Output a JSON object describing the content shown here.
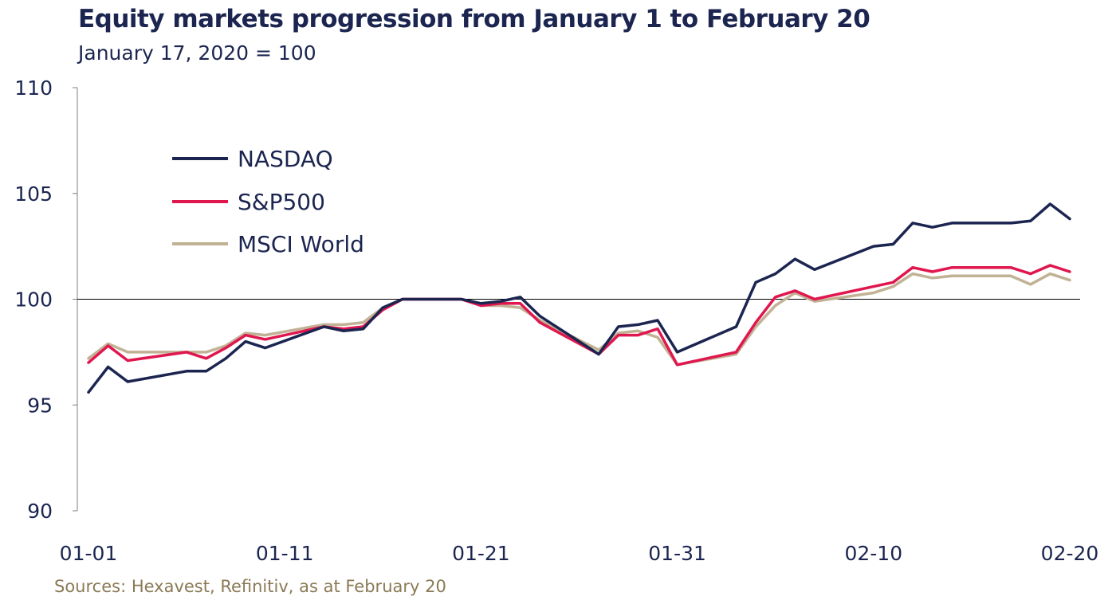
{
  "chart_data": {
    "type": "line",
    "title": "Equity markets progression from January 1 to February 20",
    "subtitle": "January 17, 2020 = 100",
    "source": "Sources: Hexavest, Refinitiv, as at February 20",
    "xlabel": "",
    "ylabel": "",
    "ylim": [
      90,
      110
    ],
    "yticks": [
      90,
      95,
      100,
      105,
      110
    ],
    "xlim": [
      0,
      50
    ],
    "xticks": [
      {
        "x": 0,
        "label": "01-01"
      },
      {
        "x": 10,
        "label": "01-11"
      },
      {
        "x": 20,
        "label": "01-21"
      },
      {
        "x": 30,
        "label": "01-31"
      },
      {
        "x": 40,
        "label": "02-10"
      },
      {
        "x": 50,
        "label": "02-20"
      }
    ],
    "baseline": 100,
    "legend_position": "top-left",
    "grid": false,
    "x": [
      0,
      1,
      2,
      5,
      6,
      7,
      8,
      9,
      12,
      13,
      14,
      15,
      16,
      19,
      20,
      21,
      22,
      23,
      26,
      27,
      28,
      29,
      30,
      33,
      34,
      35,
      36,
      37,
      40,
      41,
      42,
      43,
      44,
      47,
      48,
      49,
      50
    ],
    "series": [
      {
        "name": "NASDAQ",
        "color": "#1b2550",
        "values": [
          95.6,
          96.8,
          96.1,
          96.6,
          96.6,
          97.2,
          98.0,
          97.7,
          98.7,
          98.5,
          98.6,
          99.6,
          100.0,
          100.0,
          99.8,
          99.9,
          100.1,
          99.2,
          97.4,
          98.7,
          98.8,
          99.0,
          97.5,
          98.7,
          100.8,
          101.2,
          101.9,
          101.4,
          102.5,
          102.6,
          103.6,
          103.4,
          103.6,
          103.6,
          103.7,
          104.5,
          103.8
        ]
      },
      {
        "name": "S&P500",
        "color": "#e0174f",
        "values": [
          97.0,
          97.8,
          97.1,
          97.5,
          97.2,
          97.7,
          98.3,
          98.1,
          98.7,
          98.6,
          98.7,
          99.5,
          100.0,
          100.0,
          99.7,
          99.8,
          99.8,
          98.9,
          97.4,
          98.3,
          98.3,
          98.6,
          96.9,
          97.5,
          98.9,
          100.1,
          100.4,
          100.0,
          100.6,
          100.8,
          101.5,
          101.3,
          101.5,
          101.5,
          101.2,
          101.6,
          101.3
        ]
      },
      {
        "name": "MSCI World",
        "color": "#c2b295",
        "values": [
          97.2,
          97.9,
          97.5,
          97.5,
          97.5,
          97.8,
          98.4,
          98.3,
          98.8,
          98.8,
          98.9,
          99.6,
          100.0,
          100.0,
          99.7,
          99.7,
          99.6,
          99.0,
          97.6,
          98.4,
          98.5,
          98.2,
          96.9,
          97.4,
          98.7,
          99.7,
          100.3,
          99.9,
          100.3,
          100.6,
          101.2,
          101.0,
          101.1,
          101.1,
          100.7,
          101.2,
          100.9
        ]
      }
    ]
  }
}
